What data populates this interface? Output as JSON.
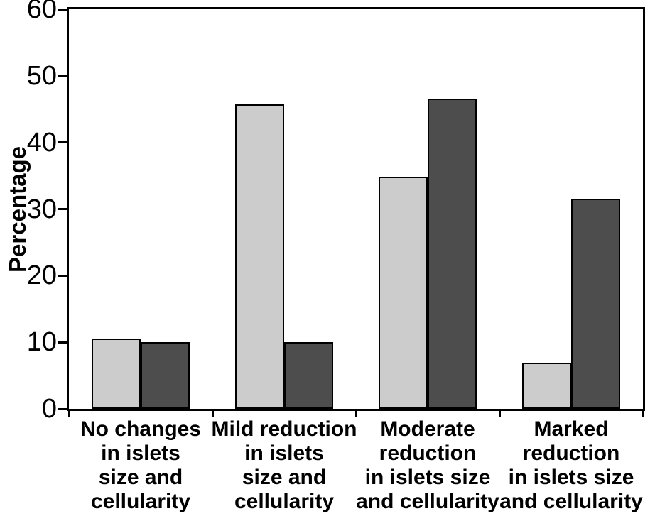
{
  "chart_data": {
    "type": "bar",
    "title": "",
    "xlabel": "",
    "ylabel": "Percentage",
    "ylim": [
      0,
      60
    ],
    "yticks": [
      0,
      10,
      20,
      30,
      40,
      50,
      60
    ],
    "grid": false,
    "legend": "none",
    "plot_frame": "full-box",
    "categories": [
      [
        "No changes",
        "in islets",
        "size and",
        "cellularity"
      ],
      [
        "Mild reduction",
        "in islets",
        "size and",
        "cellularity"
      ],
      [
        "Moderate",
        "reduction",
        "in islets size",
        "and cellularity"
      ],
      [
        "Marked",
        "reduction",
        "in islets size",
        "and cellularity"
      ]
    ],
    "series": [
      {
        "name": "light-gray-series",
        "color": "#cccccc",
        "values": [
          10.5,
          45.7,
          34.9,
          6.9
        ]
      },
      {
        "name": "dark-gray-series",
        "color": "#4d4d4d",
        "values": [
          10,
          10,
          46.6,
          31.5
        ]
      }
    ]
  },
  "colors": {
    "axis": "#000000",
    "background": "#ffffff",
    "text": "#000000"
  }
}
